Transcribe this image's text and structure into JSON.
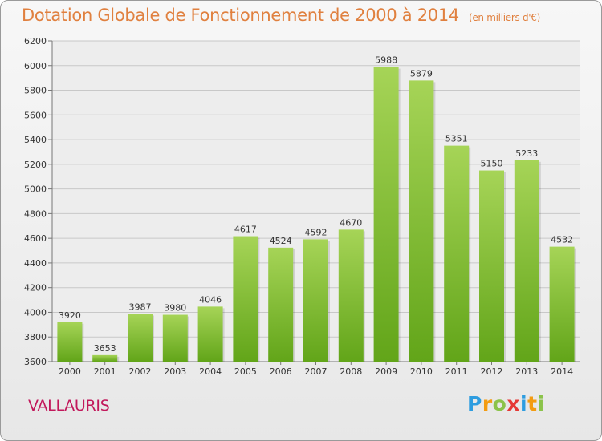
{
  "header": {
    "title": "Dotation Globale de Fonctionnement de 2000 à 2014",
    "subtitle": "(en milliers d'€)"
  },
  "footer": {
    "commune": "VALLAURIS",
    "logo_text": "Proxiti",
    "logo_letters": [
      {
        "ch": "P",
        "color": "#2e9de0"
      },
      {
        "ch": "r",
        "color": "#f39c12"
      },
      {
        "ch": "o",
        "color": "#8bc34a"
      },
      {
        "ch": "x",
        "color": "#e53935"
      },
      {
        "ch": "i",
        "color": "#2e9de0"
      },
      {
        "ch": "t",
        "color": "#f39c12"
      },
      {
        "ch": "i",
        "color": "#8bc34a"
      }
    ]
  },
  "colors": {
    "bar_light": "#a6d457",
    "bar_dark": "#62a519",
    "grid": "#c8c8c8",
    "axis_text": "#333333"
  },
  "chart_data": {
    "type": "bar",
    "title": "Dotation Globale de Fonctionnement de 2000 à 2014",
    "subtitle": "(en milliers d'€)",
    "categories": [
      "2000",
      "2001",
      "2002",
      "2003",
      "2004",
      "2005",
      "2006",
      "2007",
      "2008",
      "2009",
      "2010",
      "2011",
      "2012",
      "2013",
      "2014"
    ],
    "values": [
      3920,
      3653,
      3987,
      3980,
      4046,
      4617,
      4524,
      4592,
      4670,
      5988,
      5879,
      5351,
      5150,
      5233,
      4532
    ],
    "ylim": [
      3600,
      6200
    ],
    "yticks": [
      3600,
      3800,
      4000,
      4200,
      4400,
      4600,
      4800,
      5000,
      5200,
      5400,
      5600,
      5800,
      6000,
      6200
    ],
    "grid": true,
    "xlabel": "",
    "ylabel": ""
  }
}
